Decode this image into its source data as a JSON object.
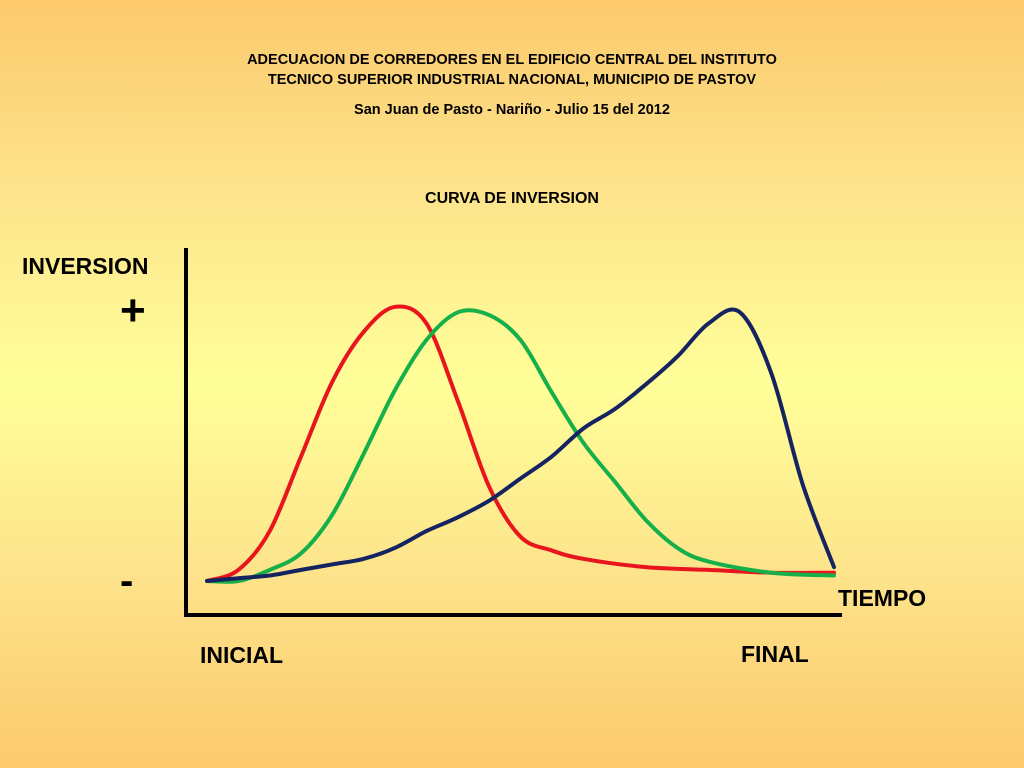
{
  "header": {
    "line1": "ADECUACION DE CORREDORES EN EL EDIFICIO CENTRAL DEL INSTITUTO",
    "line2": "TECNICO SUPERIOR INDUSTRIAL NACIONAL, MUNICIPIO DE PASTOV",
    "line3": "San Juan de Pasto - Nariño - Julio 15 del 2012"
  },
  "chart_data": {
    "type": "line",
    "title": "CURVA DE INVERSION",
    "ylabel": "INVERSION",
    "xlabel": "TIEMPO",
    "y_high_label": "+",
    "y_low_label": "-",
    "x_start_label": "INICIAL",
    "x_end_label": "FINAL",
    "xlim": [
      0,
      100
    ],
    "ylim": [
      0,
      100
    ],
    "grid": false,
    "legend": "none",
    "series": [
      {
        "color": "#e8141e",
        "x": [
          0,
          5,
          10,
          15,
          20,
          25,
          30,
          35,
          40,
          45,
          50,
          55,
          60,
          70,
          80,
          90,
          100
        ],
        "y": [
          0,
          4,
          18,
          45,
          72,
          90,
          99,
          93,
          65,
          34,
          16,
          11,
          8,
          5,
          4,
          3,
          3
        ]
      },
      {
        "color": "#16b04a",
        "x": [
          0,
          5,
          10,
          15,
          20,
          25,
          30,
          35,
          40,
          45,
          50,
          55,
          60,
          65,
          70,
          75,
          80,
          90,
          100
        ],
        "y": [
          0,
          0,
          4,
          10,
          24,
          46,
          69,
          87,
          97,
          96,
          87,
          68,
          50,
          36,
          22,
          12,
          7,
          3,
          2
        ]
      },
      {
        "color": "#152460",
        "x": [
          0,
          5,
          10,
          15,
          20,
          25,
          30,
          35,
          40,
          45,
          50,
          55,
          60,
          65,
          70,
          75,
          80,
          85,
          90,
          95,
          100
        ],
        "y": [
          0,
          1,
          2,
          4,
          6,
          8,
          12,
          18,
          23,
          29,
          37,
          45,
          55,
          62,
          71,
          81,
          93,
          97,
          75,
          35,
          5
        ]
      }
    ]
  }
}
